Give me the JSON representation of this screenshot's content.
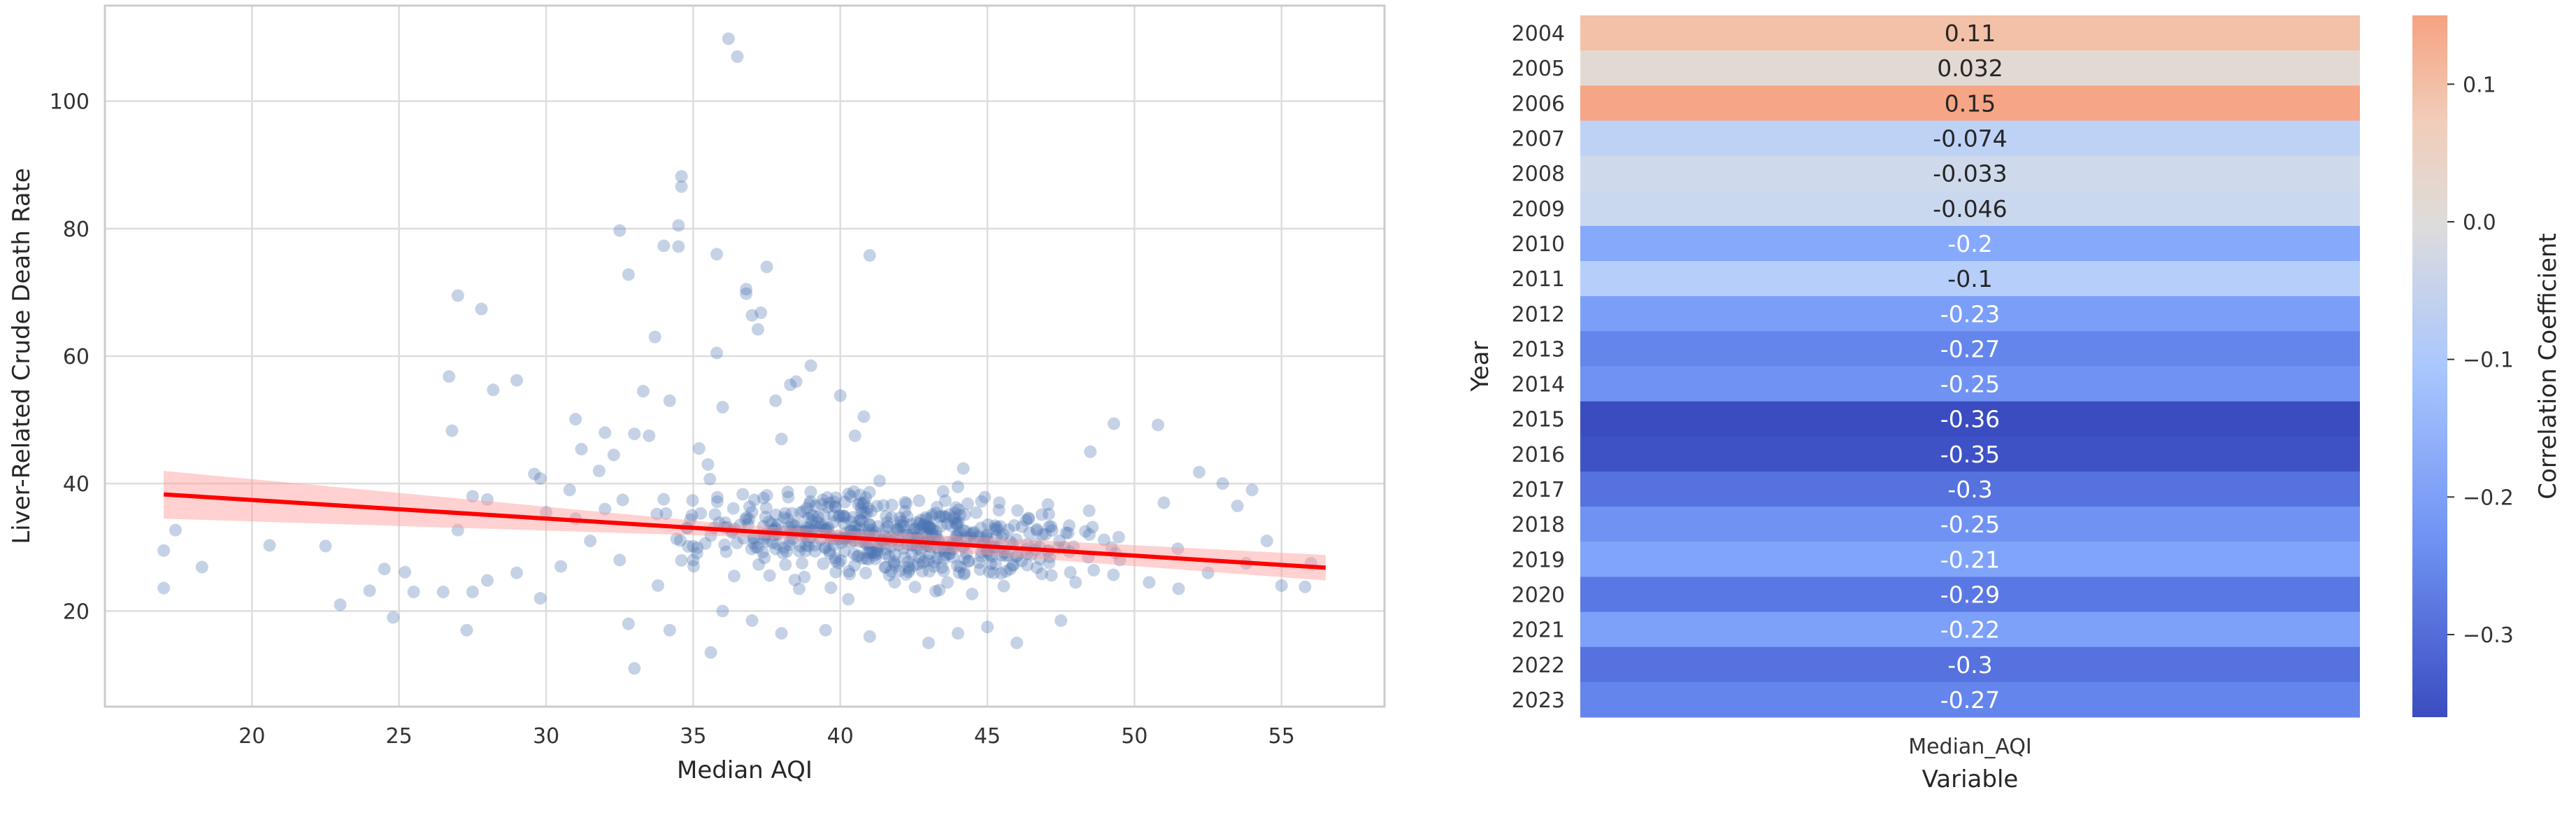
{
  "chart_data": [
    {
      "type": "scatter",
      "title": "",
      "xlabel": "Median AQI",
      "ylabel": "Liver-Related Crude Death Rate",
      "xlim": [
        15,
        58.5
      ],
      "ylim": [
        5,
        115
      ],
      "xticks": [
        20,
        25,
        30,
        35,
        40,
        45,
        50,
        55
      ],
      "yticks": [
        20,
        40,
        60,
        80,
        100
      ],
      "grid": true,
      "legend": "none",
      "point_color": "#4c72b0",
      "regression": {
        "color": "#ff0000",
        "band_color": "#ff9999",
        "x": [
          17,
          56.5
        ],
        "y": [
          38.3,
          26.8
        ],
        "ci_low": [
          34.5,
          24.8
        ],
        "ci_high": [
          42.0,
          28.8
        ]
      },
      "points": [
        {
          "x": 17.0,
          "y": 29.5
        },
        {
          "x": 17.0,
          "y": 23.6
        },
        {
          "x": 17.4,
          "y": 32.7
        },
        {
          "x": 18.3,
          "y": 26.9
        },
        {
          "x": 20.6,
          "y": 30.3
        },
        {
          "x": 22.5,
          "y": 30.2
        },
        {
          "x": 23.0,
          "y": 21.0
        },
        {
          "x": 24.0,
          "y": 23.2
        },
        {
          "x": 24.5,
          "y": 26.6
        },
        {
          "x": 24.8,
          "y": 19.0
        },
        {
          "x": 25.2,
          "y": 26.1
        },
        {
          "x": 25.5,
          "y": 23.0
        },
        {
          "x": 26.5,
          "y": 23.0
        },
        {
          "x": 26.7,
          "y": 56.8
        },
        {
          "x": 26.8,
          "y": 48.3
        },
        {
          "x": 27.0,
          "y": 69.5
        },
        {
          "x": 27.0,
          "y": 32.7
        },
        {
          "x": 27.3,
          "y": 17.0
        },
        {
          "x": 27.5,
          "y": 38.0
        },
        {
          "x": 27.5,
          "y": 23.0
        },
        {
          "x": 27.8,
          "y": 67.4
        },
        {
          "x": 28.0,
          "y": 24.8
        },
        {
          "x": 28.2,
          "y": 54.7
        },
        {
          "x": 28.0,
          "y": 37.5
        },
        {
          "x": 29.0,
          "y": 26.0
        },
        {
          "x": 29.0,
          "y": 56.2
        },
        {
          "x": 29.6,
          "y": 41.5
        },
        {
          "x": 29.8,
          "y": 40.8
        },
        {
          "x": 29.8,
          "y": 22.0
        },
        {
          "x": 30.5,
          "y": 27.0
        },
        {
          "x": 30.8,
          "y": 39.0
        },
        {
          "x": 31.0,
          "y": 50.1
        },
        {
          "x": 31.2,
          "y": 45.4
        },
        {
          "x": 31.0,
          "y": 34.5
        },
        {
          "x": 31.5,
          "y": 31.0
        },
        {
          "x": 31.8,
          "y": 42.0
        },
        {
          "x": 32.0,
          "y": 48.0
        },
        {
          "x": 32.3,
          "y": 44.5
        },
        {
          "x": 32.5,
          "y": 79.7
        },
        {
          "x": 32.5,
          "y": 28.0
        },
        {
          "x": 32.8,
          "y": 72.8
        },
        {
          "x": 32.8,
          "y": 18.0
        },
        {
          "x": 33.0,
          "y": 47.8
        },
        {
          "x": 33.0,
          "y": 11.0
        },
        {
          "x": 33.3,
          "y": 54.5
        },
        {
          "x": 33.5,
          "y": 47.5
        },
        {
          "x": 33.7,
          "y": 63.0
        },
        {
          "x": 33.8,
          "y": 24.0
        },
        {
          "x": 34.0,
          "y": 77.3
        },
        {
          "x": 34.2,
          "y": 53.0
        },
        {
          "x": 34.2,
          "y": 17.0
        },
        {
          "x": 34.5,
          "y": 77.2
        },
        {
          "x": 34.5,
          "y": 80.5
        },
        {
          "x": 34.6,
          "y": 88.2
        },
        {
          "x": 34.6,
          "y": 86.6
        },
        {
          "x": 34.8,
          "y": 33.0
        },
        {
          "x": 35.0,
          "y": 28.0
        },
        {
          "x": 35.2,
          "y": 45.5
        },
        {
          "x": 35.5,
          "y": 43.0
        },
        {
          "x": 35.6,
          "y": 13.5
        },
        {
          "x": 35.8,
          "y": 60.5
        },
        {
          "x": 35.8,
          "y": 76.0
        },
        {
          "x": 36.0,
          "y": 52.0
        },
        {
          "x": 36.2,
          "y": 109.8
        },
        {
          "x": 36.5,
          "y": 107.0
        },
        {
          "x": 36.8,
          "y": 70.5
        },
        {
          "x": 36.8,
          "y": 69.8
        },
        {
          "x": 37.0,
          "y": 66.4
        },
        {
          "x": 37.2,
          "y": 64.2
        },
        {
          "x": 37.3,
          "y": 66.8
        },
        {
          "x": 37.5,
          "y": 74.0
        },
        {
          "x": 37.8,
          "y": 53.0
        },
        {
          "x": 38.3,
          "y": 55.5
        },
        {
          "x": 38.5,
          "y": 56.0
        },
        {
          "x": 38.0,
          "y": 47.0
        },
        {
          "x": 39.0,
          "y": 58.5
        },
        {
          "x": 40.0,
          "y": 53.8
        },
        {
          "x": 40.5,
          "y": 47.5
        },
        {
          "x": 40.8,
          "y": 50.5
        },
        {
          "x": 41.0,
          "y": 75.8
        },
        {
          "x": 48.5,
          "y": 45.0
        },
        {
          "x": 49.3,
          "y": 49.4
        },
        {
          "x": 50.8,
          "y": 49.2
        },
        {
          "x": 51.0,
          "y": 37.0
        },
        {
          "x": 52.2,
          "y": 41.8
        },
        {
          "x": 53.0,
          "y": 40.0
        },
        {
          "x": 53.5,
          "y": 36.5
        },
        {
          "x": 54.0,
          "y": 39.0
        },
        {
          "x": 54.5,
          "y": 31.0
        },
        {
          "x": 55.0,
          "y": 24.0
        },
        {
          "x": 55.8,
          "y": 23.8
        },
        {
          "x": 56.0,
          "y": 27.5
        },
        {
          "x": 53.8,
          "y": 27.5
        },
        {
          "x": 52.5,
          "y": 26.0
        },
        {
          "x": 51.5,
          "y": 23.5
        },
        {
          "x": 50.5,
          "y": 24.5
        },
        {
          "x": 49.5,
          "y": 28.0
        },
        {
          "x": 48.0,
          "y": 24.5
        },
        {
          "x": 47.5,
          "y": 18.5
        },
        {
          "x": 46.0,
          "y": 15.0
        },
        {
          "x": 45.0,
          "y": 17.5
        },
        {
          "x": 44.0,
          "y": 16.5
        },
        {
          "x": 43.0,
          "y": 15.0
        },
        {
          "x": 41.0,
          "y": 16.0
        },
        {
          "x": 39.5,
          "y": 17.0
        },
        {
          "x": 38.0,
          "y": 16.5
        },
        {
          "x": 37.0,
          "y": 18.5
        },
        {
          "x": 36.0,
          "y": 20.0
        },
        {
          "x": 30.0,
          "y": 35.5
        },
        {
          "x": 32.0,
          "y": 36.0
        }
      ],
      "cloud": {
        "count": 560,
        "x_center": 42.0,
        "x_spread": 6.5,
        "y_center": 31.5,
        "y_spread": 5.8
      }
    },
    {
      "type": "heatmap",
      "title": "",
      "xlabel": "Variable",
      "ylabel": "Year",
      "column": "Median_AQI",
      "colorbar_label": "Correlation Coefficient",
      "colorbar_range": [
        -0.36,
        0.15
      ],
      "colorbar_ticks": [
        {
          "value": 0.1,
          "label": "0.1"
        },
        {
          "value": 0.0,
          "label": "0.0"
        },
        {
          "value": -0.1,
          "label": "−0.1"
        },
        {
          "value": -0.2,
          "label": "−0.2"
        },
        {
          "value": -0.3,
          "label": "−0.3"
        }
      ],
      "colormap": "coolwarm",
      "rows": [
        {
          "year": "2004",
          "value": 0.11,
          "label": "0.11",
          "color": "#f2c1a7"
        },
        {
          "year": "2005",
          "value": 0.032,
          "label": "0.032",
          "color": "#e3d9d3"
        },
        {
          "year": "2006",
          "value": 0.15,
          "label": "0.15",
          "color": "#f6a586"
        },
        {
          "year": "2007",
          "value": -0.074,
          "label": "-0.074",
          "color": "#bed2f6"
        },
        {
          "year": "2008",
          "value": -0.033,
          "label": "-0.033",
          "color": "#cedaeb"
        },
        {
          "year": "2009",
          "value": -0.046,
          "label": "-0.046",
          "color": "#cad8ef"
        },
        {
          "year": "2010",
          "value": -0.2,
          "label": "-0.2",
          "color": "#86a9fc"
        },
        {
          "year": "2011",
          "value": -0.1,
          "label": "-0.1",
          "color": "#b6cefa"
        },
        {
          "year": "2012",
          "value": -0.23,
          "label": "-0.23",
          "color": "#7b9ff9"
        },
        {
          "year": "2013",
          "value": -0.27,
          "label": "-0.27",
          "color": "#6485ec"
        },
        {
          "year": "2014",
          "value": -0.25,
          "label": "-0.25",
          "color": "#7093f3"
        },
        {
          "year": "2015",
          "value": -0.36,
          "label": "-0.36",
          "color": "#3b4cc0"
        },
        {
          "year": "2016",
          "value": -0.35,
          "label": "-0.35",
          "color": "#3e51c5"
        },
        {
          "year": "2017",
          "value": -0.3,
          "label": "-0.3",
          "color": "#5572df"
        },
        {
          "year": "2018",
          "value": -0.25,
          "label": "-0.25",
          "color": "#7093f3"
        },
        {
          "year": "2019",
          "value": -0.21,
          "label": "-0.21",
          "color": "#81a4fb"
        },
        {
          "year": "2020",
          "value": -0.29,
          "label": "-0.29",
          "color": "#5a78e4"
        },
        {
          "year": "2021",
          "value": -0.22,
          "label": "-0.22",
          "color": "#7da0f9"
        },
        {
          "year": "2022",
          "value": -0.3,
          "label": "-0.3",
          "color": "#5572df"
        },
        {
          "year": "2023",
          "value": -0.27,
          "label": "-0.27",
          "color": "#6485ec"
        }
      ]
    }
  ]
}
